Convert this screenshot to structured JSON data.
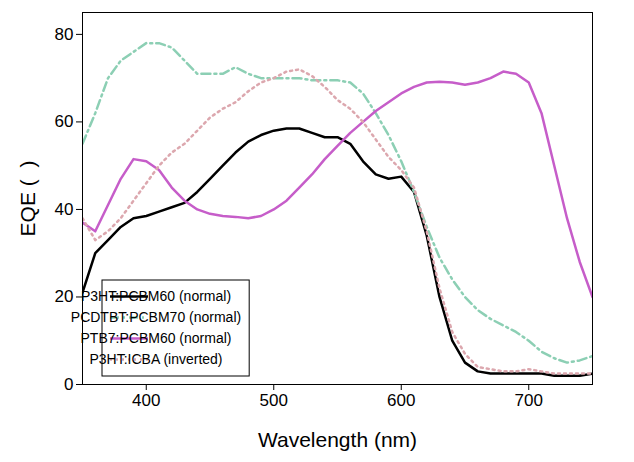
{
  "chart_data": {
    "type": "line",
    "x_label": "Wavelength (nm)",
    "y_label": "EQE (  )",
    "x": [
      350,
      360,
      370,
      380,
      390,
      400,
      410,
      420,
      430,
      440,
      450,
      460,
      470,
      480,
      490,
      500,
      510,
      520,
      530,
      540,
      550,
      560,
      570,
      580,
      590,
      600,
      610,
      620,
      630,
      640,
      650,
      660,
      670,
      680,
      690,
      700,
      710,
      720,
      730,
      740,
      750
    ],
    "series": [
      {
        "name": "P3HT:PCBM60 (normal)",
        "color": "#000000",
        "line_style": "solid",
        "values": [
          21,
          30,
          33,
          36,
          38,
          38.5,
          39.5,
          40.5,
          41.5,
          44,
          47,
          50,
          53,
          55.5,
          57,
          58,
          58.5,
          58.5,
          57.5,
          56.5,
          56.5,
          55,
          51,
          48,
          47,
          47.5,
          44,
          34,
          20,
          10,
          5,
          3,
          2.5,
          2.5,
          2.5,
          2.5,
          2.5,
          2,
          2,
          2,
          2.5
        ]
      },
      {
        "name": "PCDTBT:PCBM70 (normal)",
        "color": "#8ccfb4",
        "line_style": "dashdot",
        "values": [
          55,
          62,
          70,
          74,
          76,
          78,
          78,
          77,
          74,
          71,
          71,
          71,
          72.5,
          71,
          70,
          70,
          70,
          70,
          69.5,
          69.5,
          69.5,
          69,
          66.5,
          62,
          57,
          51,
          44,
          36,
          29,
          24,
          20,
          17,
          15,
          13.5,
          12,
          10,
          7.5,
          6,
          5,
          5.5,
          6.5
        ]
      },
      {
        "name": "PTB7:PCBM60 (normal)",
        "color": "#c65dc9",
        "line_style": "solid",
        "values": [
          37,
          35,
          41,
          47,
          51.5,
          51,
          49,
          45,
          42,
          40,
          39,
          38.5,
          38.3,
          38,
          38.5,
          40,
          42,
          45,
          48,
          51.5,
          54.5,
          57.5,
          60,
          62.5,
          64.5,
          66.5,
          68,
          69,
          69.2,
          69,
          68.5,
          69,
          70,
          71.5,
          71,
          69,
          62,
          50,
          38,
          28,
          20
        ]
      },
      {
        "name": "P3HT:ICBA (inverted)",
        "color": "#dca7ae",
        "line_style": "dotted",
        "values": [
          38,
          33,
          35,
          38,
          42,
          46,
          50,
          53,
          55,
          58,
          61,
          63,
          64.5,
          67,
          69,
          70,
          71.5,
          72,
          70.5,
          68,
          65,
          63,
          60,
          56,
          52,
          49,
          45,
          35,
          22,
          12,
          7,
          4,
          3.5,
          3,
          3,
          3.5,
          3,
          2.5,
          2.5,
          2.5,
          2.5
        ]
      }
    ],
    "xlim": [
      350,
      750
    ],
    "xticks": [
      400,
      500,
      600,
      700
    ],
    "ylim": [
      0,
      85
    ],
    "yticks": [
      0,
      20,
      40,
      60,
      80
    ],
    "grid": false,
    "legend": "lower left"
  }
}
